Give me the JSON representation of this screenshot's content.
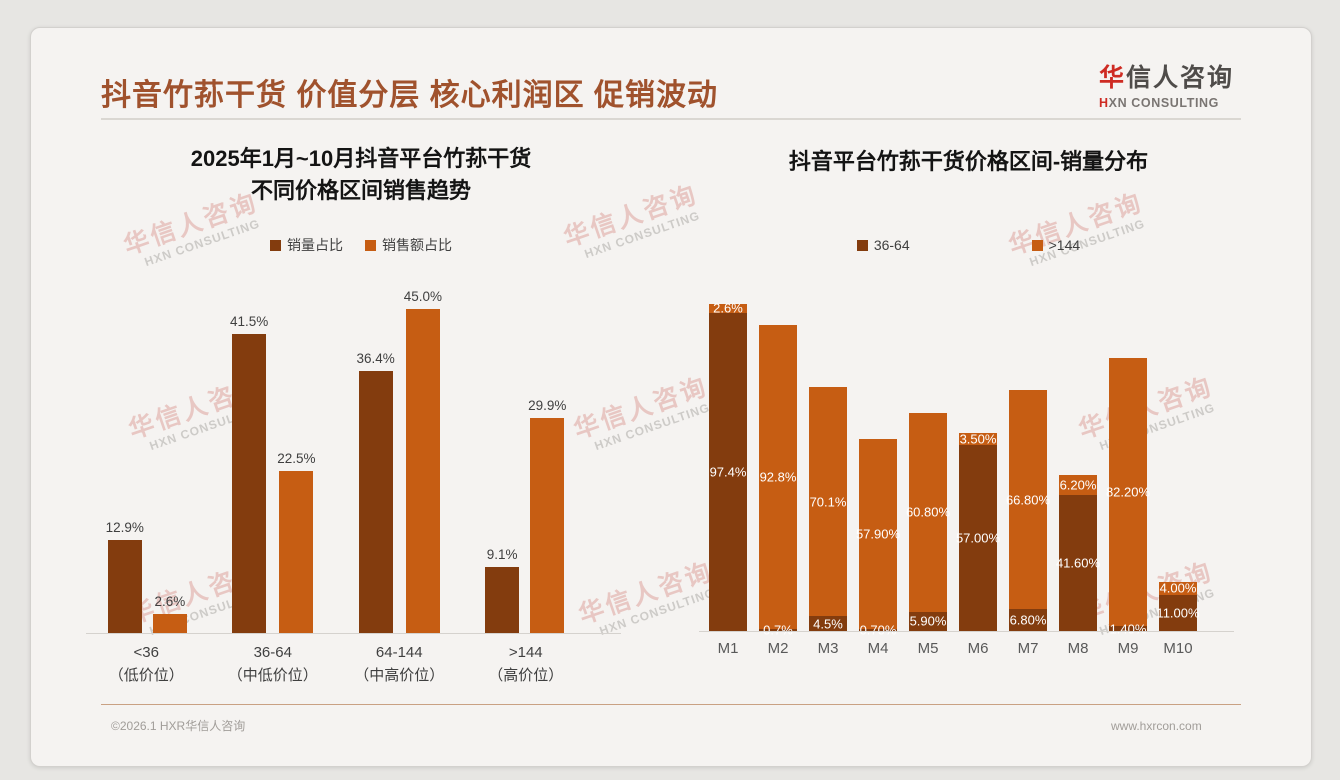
{
  "page": {
    "title": "抖音竹荪干货 价值分层 核心利润区 促销波动",
    "logo": {
      "cn_red": "华",
      "cn_rest": "信人咨询",
      "en_red": "H",
      "en_rest": "XN CONSULTING"
    },
    "watermark": {
      "line1": "华信人咨询",
      "line2": "HXN CONSULTING"
    },
    "footer": {
      "left": "©2026.1 HXR华信人咨询",
      "right": "www.hxrcon.com"
    }
  },
  "colors": {
    "title_brown": "#A0522D",
    "series_dark_brown": "#833C0E",
    "series_orange": "#C65D13",
    "logo_red": "#CE2B23"
  },
  "chart_data": [
    {
      "type": "bar",
      "title_line1": "2025年1月~10月抖音平台竹荪干货",
      "title_line2": "不同价格区间销售趋势",
      "categories": [
        "<36",
        "36-64",
        "64-144",
        ">144"
      ],
      "category_subs": [
        "（低价位）",
        "（中低价位）",
        "（中高价位）",
        "（高价位）"
      ],
      "series": [
        {
          "name": "销量占比",
          "color": "#833C0E",
          "values": [
            12.9,
            41.5,
            36.4,
            9.1
          ],
          "labels": [
            "12.9%",
            "41.5%",
            "36.4%",
            "9.1%"
          ]
        },
        {
          "name": "销售额占比",
          "color": "#C65D13",
          "values": [
            2.6,
            22.5,
            45.0,
            29.9
          ],
          "labels": [
            "2.6%",
            "22.5%",
            "45.0%",
            "29.9%"
          ]
        }
      ],
      "ylim": [
        0,
        47
      ],
      "grid": false,
      "legend_position": "top",
      "value_label_color": "#3F3F3F"
    },
    {
      "type": "stacked-bar",
      "title": "抖音平台竹荪干货价格区间-销量分布",
      "categories": [
        "M1",
        "M2",
        "M3",
        "M4",
        "M5",
        "M6",
        "M7",
        "M8",
        "M9",
        "M10"
      ],
      "series": [
        {
          "name": "36-64",
          "color": "#833C0E",
          "stack_order": "bottom",
          "values": [
            97.4,
            0.7,
            4.5,
            0.7,
            5.9,
            57.0,
            6.8,
            41.6,
            1.4,
            11.0
          ],
          "labels": [
            "97.4%",
            "0.7%",
            "4.5%",
            "0.70%",
            "5.90%",
            "57.00%",
            "6.80%",
            "41.60%",
            "1.40%",
            "11.00%"
          ]
        },
        {
          "name": ">144",
          "color": "#C65D13",
          "stack_order": "top",
          "values": [
            2.6,
            92.8,
            70.1,
            57.9,
            60.8,
            3.5,
            66.8,
            6.2,
            82.2,
            4.0
          ],
          "labels": [
            "2.6%",
            "92.8%",
            "70.1%",
            "57.90%",
            "60.80%",
            "3.50%",
            "66.80%",
            "6.20%",
            "82.20%",
            "4.00%"
          ]
        }
      ],
      "ylim": [
        0,
        100
      ],
      "grid": false,
      "legend_position": "top",
      "value_label_color": "#FFFFFF"
    }
  ]
}
